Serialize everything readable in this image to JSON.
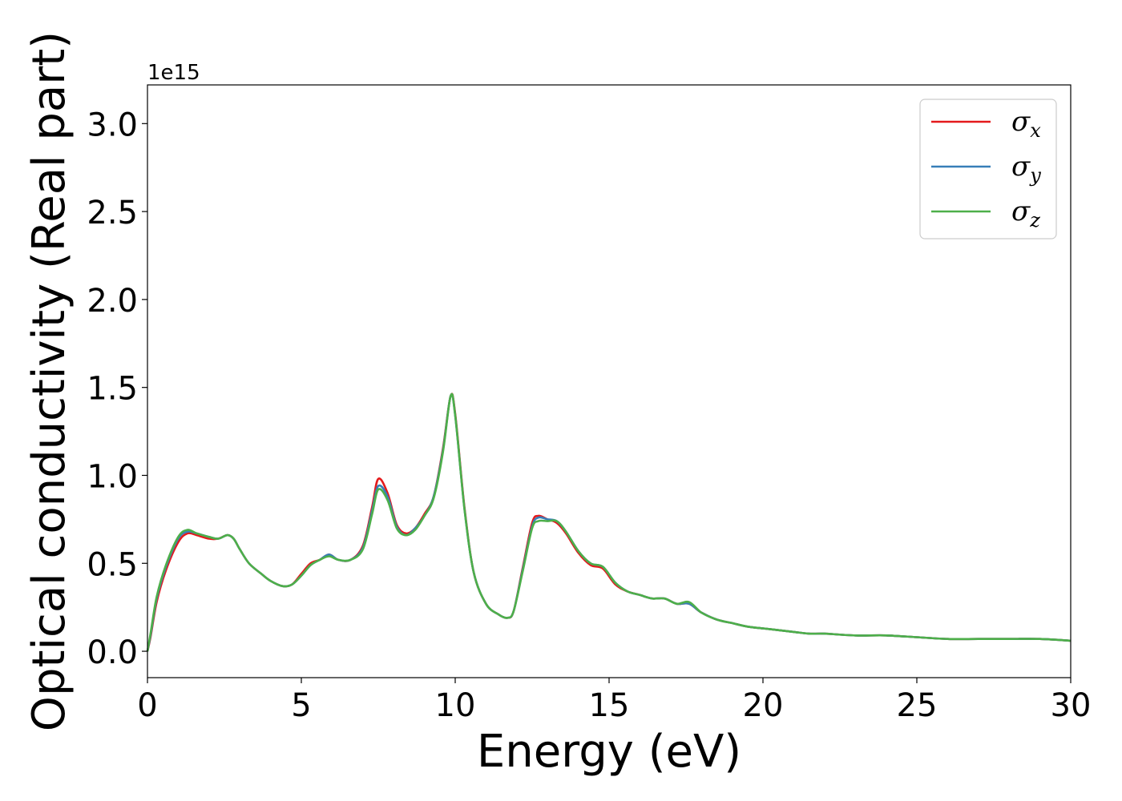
{
  "chart_data": {
    "type": "line",
    "xlabel": "Energy (eV)",
    "ylabel": "Optical conductivity (Real part)",
    "y_offset_label": "1e15",
    "xlim": [
      0,
      30
    ],
    "ylim": [
      -0.15,
      3.22
    ],
    "x_ticks": [
      0,
      5,
      10,
      15,
      20,
      25,
      30
    ],
    "x_tick_labels": [
      "0",
      "5",
      "10",
      "15",
      "20",
      "25",
      "30"
    ],
    "y_ticks": [
      0.0,
      0.5,
      1.0,
      1.5,
      2.0,
      2.5,
      3.0
    ],
    "y_tick_labels": [
      "0.0",
      "0.5",
      "1.0",
      "1.5",
      "2.0",
      "2.5",
      "3.0"
    ],
    "grid": false,
    "legend_position": "top-right",
    "x": [
      0,
      0.1,
      0.3,
      0.6,
      1.0,
      1.3,
      1.6,
      2.0,
      2.3,
      2.6,
      2.8,
      3.0,
      3.3,
      3.7,
      4.0,
      4.4,
      4.7,
      5.0,
      5.3,
      5.6,
      5.9,
      6.2,
      6.6,
      7.0,
      7.3,
      7.5,
      7.8,
      8.1,
      8.4,
      8.7,
      9.0,
      9.3,
      9.6,
      9.85,
      10.0,
      10.3,
      10.6,
      11.0,
      11.4,
      11.7,
      11.9,
      12.2,
      12.5,
      12.7,
      13.0,
      13.3,
      13.6,
      14.0,
      14.4,
      14.8,
      15.2,
      15.6,
      16.0,
      16.4,
      16.8,
      17.2,
      17.6,
      18.0,
      18.5,
      19.0,
      19.5,
      20.0,
      20.5,
      21.0,
      21.5,
      22.0,
      23.0,
      24.0,
      25.0,
      26.0,
      27.0,
      28.0,
      29.0,
      30.0
    ],
    "series": [
      {
        "name": "σx",
        "label": "σ",
        "subscript": "x",
        "color": "#e41a1c",
        "values": [
          0.0,
          0.08,
          0.28,
          0.46,
          0.62,
          0.67,
          0.66,
          0.64,
          0.64,
          0.66,
          0.64,
          0.58,
          0.5,
          0.44,
          0.4,
          0.37,
          0.38,
          0.44,
          0.5,
          0.52,
          0.55,
          0.52,
          0.52,
          0.6,
          0.82,
          0.98,
          0.9,
          0.72,
          0.67,
          0.7,
          0.78,
          0.88,
          1.15,
          1.45,
          1.35,
          0.82,
          0.45,
          0.27,
          0.21,
          0.19,
          0.23,
          0.48,
          0.73,
          0.77,
          0.75,
          0.73,
          0.67,
          0.56,
          0.49,
          0.47,
          0.38,
          0.34,
          0.32,
          0.3,
          0.3,
          0.27,
          0.27,
          0.22,
          0.18,
          0.16,
          0.14,
          0.13,
          0.12,
          0.11,
          0.1,
          0.1,
          0.09,
          0.09,
          0.08,
          0.07,
          0.07,
          0.07,
          0.07,
          0.06
        ]
      },
      {
        "name": "σy",
        "label": "σ",
        "subscript": "y",
        "color": "#377eb8",
        "values": [
          0.0,
          0.09,
          0.3,
          0.48,
          0.64,
          0.68,
          0.67,
          0.65,
          0.64,
          0.66,
          0.64,
          0.58,
          0.5,
          0.44,
          0.4,
          0.37,
          0.38,
          0.43,
          0.49,
          0.52,
          0.55,
          0.52,
          0.52,
          0.59,
          0.8,
          0.94,
          0.88,
          0.71,
          0.66,
          0.7,
          0.77,
          0.88,
          1.14,
          1.45,
          1.34,
          0.81,
          0.45,
          0.27,
          0.21,
          0.19,
          0.23,
          0.47,
          0.71,
          0.76,
          0.75,
          0.74,
          0.68,
          0.57,
          0.5,
          0.48,
          0.39,
          0.34,
          0.32,
          0.3,
          0.3,
          0.27,
          0.27,
          0.22,
          0.18,
          0.16,
          0.14,
          0.13,
          0.12,
          0.11,
          0.1,
          0.1,
          0.09,
          0.09,
          0.08,
          0.07,
          0.07,
          0.07,
          0.07,
          0.06
        ]
      },
      {
        "name": "σz",
        "label": "σ",
        "subscript": "z",
        "color": "#4daf4a",
        "values": [
          0.0,
          0.1,
          0.31,
          0.49,
          0.65,
          0.69,
          0.67,
          0.65,
          0.64,
          0.66,
          0.64,
          0.58,
          0.5,
          0.44,
          0.4,
          0.37,
          0.38,
          0.43,
          0.49,
          0.52,
          0.54,
          0.52,
          0.52,
          0.58,
          0.78,
          0.92,
          0.86,
          0.7,
          0.66,
          0.69,
          0.77,
          0.87,
          1.13,
          1.45,
          1.34,
          0.81,
          0.45,
          0.27,
          0.21,
          0.19,
          0.23,
          0.46,
          0.7,
          0.74,
          0.74,
          0.74,
          0.68,
          0.57,
          0.5,
          0.48,
          0.39,
          0.34,
          0.32,
          0.3,
          0.3,
          0.27,
          0.28,
          0.22,
          0.18,
          0.16,
          0.14,
          0.13,
          0.12,
          0.11,
          0.1,
          0.1,
          0.09,
          0.09,
          0.08,
          0.07,
          0.07,
          0.07,
          0.07,
          0.06
        ]
      }
    ]
  }
}
